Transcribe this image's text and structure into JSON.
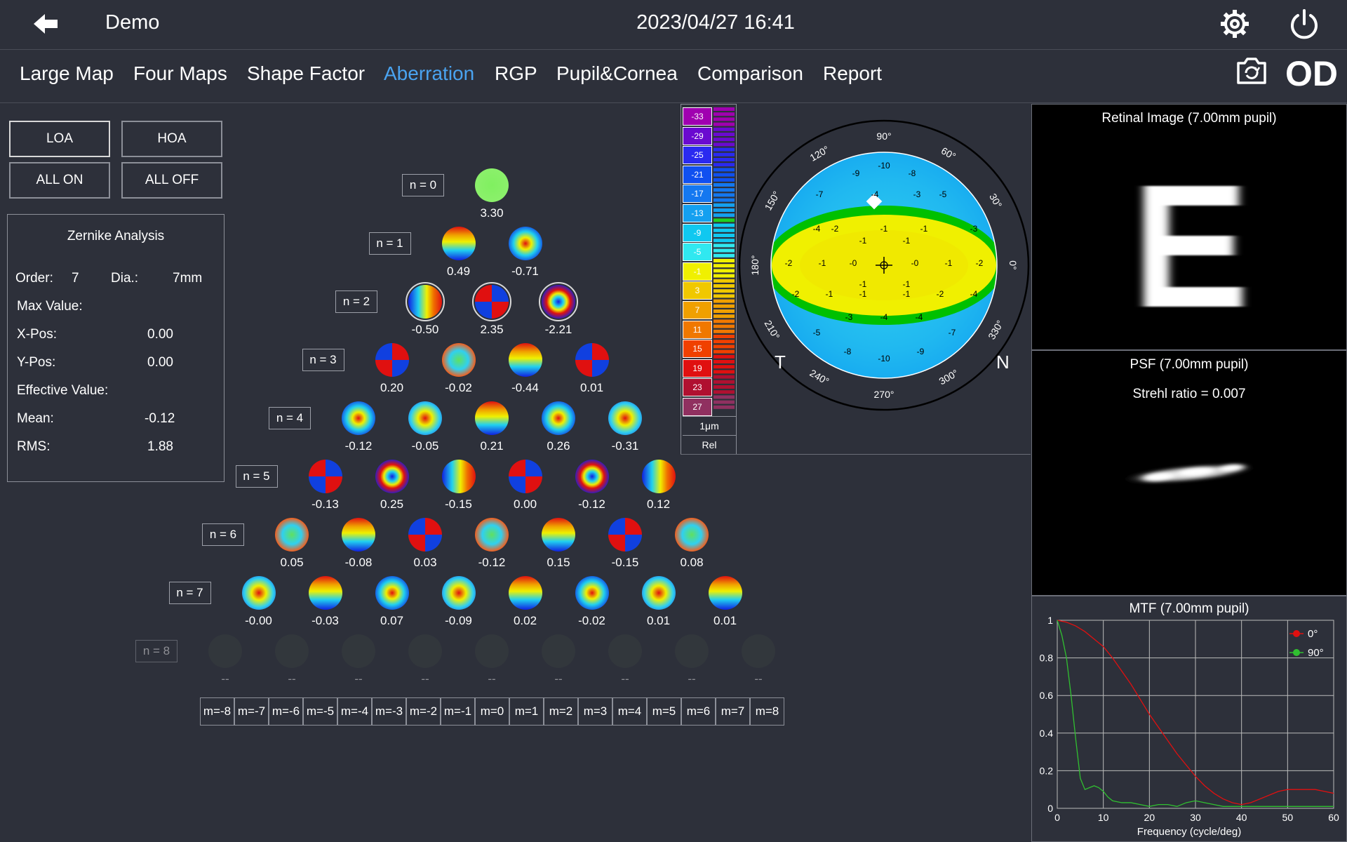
{
  "header": {
    "title": "Demo",
    "datetime": "2023/04/27 16:41",
    "eye": "OD",
    "icons": [
      "back-arrow-icon",
      "gear-icon",
      "power-icon",
      "camera-icon"
    ]
  },
  "tabs": [
    {
      "label": "Large Map",
      "active": false
    },
    {
      "label": "Four Maps",
      "active": false
    },
    {
      "label": "Shape Factor",
      "active": false
    },
    {
      "label": "Aberration",
      "active": true
    },
    {
      "label": "RGP",
      "active": false
    },
    {
      "label": "Pupil&Cornea",
      "active": false
    },
    {
      "label": "Comparison",
      "active": false
    },
    {
      "label": "Report",
      "active": false
    }
  ],
  "controls": {
    "loa": "LOA",
    "hoa": "HOA",
    "all_on": "ALL ON",
    "all_off": "ALL OFF"
  },
  "analysis": {
    "title": "Zernike Analysis",
    "order_label": "Order:",
    "order_value": "7",
    "dia_label": "Dia.:",
    "dia_value": "7mm",
    "max_label": "Max Value:",
    "xpos_label": "X-Pos:",
    "xpos_value": "0.00",
    "ypos_label": "Y-Pos:",
    "ypos_value": "0.00",
    "effective_label": "Effective Value:",
    "mean_label": "Mean:",
    "mean_value": "-0.12",
    "rms_label": "RMS:",
    "rms_value": "1.88"
  },
  "zernike": {
    "orders": [
      {
        "label": "n = 0",
        "values": [
          "3.30"
        ]
      },
      {
        "label": "n = 1",
        "values": [
          "0.49",
          "-0.71"
        ]
      },
      {
        "label": "n = 2",
        "values": [
          "-0.50",
          "2.35",
          "-2.21"
        ]
      },
      {
        "label": "n = 3",
        "values": [
          "0.20",
          "-0.02",
          "-0.44",
          "0.01"
        ]
      },
      {
        "label": "n = 4",
        "values": [
          "-0.12",
          "-0.05",
          "0.21",
          "0.26",
          "-0.31"
        ]
      },
      {
        "label": "n = 5",
        "values": [
          "-0.13",
          "0.25",
          "-0.15",
          "0.00",
          "-0.12",
          "0.12"
        ]
      },
      {
        "label": "n = 6",
        "values": [
          "0.05",
          "-0.08",
          "0.03",
          "-0.12",
          "0.15",
          "-0.15",
          "0.08"
        ]
      },
      {
        "label": "n = 7",
        "values": [
          "-0.00",
          "-0.03",
          "0.07",
          "-0.09",
          "0.02",
          "-0.02",
          "0.01",
          "0.01"
        ]
      },
      {
        "label": "n = 8",
        "values": [
          "--",
          "--",
          "--",
          "--",
          "--",
          "--",
          "--",
          "--",
          "--"
        ],
        "disabled": true
      }
    ],
    "m_labels": [
      "m=-8",
      "m=-7",
      "m=-6",
      "m=-5",
      "m=-4",
      "m=-3",
      "m=-2",
      "m=-1",
      "m=0",
      "m=1",
      "m=2",
      "m=3",
      "m=4",
      "m=5",
      "m=6",
      "m=7",
      "m=8"
    ]
  },
  "scale": {
    "values": [
      "-33",
      "-29",
      "-25",
      "-21",
      "-17",
      "-13",
      "-9",
      "-5",
      "-1",
      "3",
      "7",
      "11",
      "15",
      "19",
      "23",
      "27"
    ],
    "colors": [
      "#a000b0",
      "#6a0ad0",
      "#2a2af0",
      "#1050f0",
      "#1478f0",
      "#14a0f0",
      "#10c8f0",
      "#30e8f0",
      "#f0f000",
      "#f0c800",
      "#f0a000",
      "#f07800",
      "#f04000",
      "#e01010",
      "#b01030",
      "#903060"
    ],
    "unit": "1μm",
    "mode": "Rel"
  },
  "map": {
    "angles": [
      "90°",
      "60°",
      "30°",
      "0°",
      "330°",
      "300°",
      "270°",
      "240°",
      "210°",
      "180°",
      "150°",
      "120°"
    ],
    "temporal": "T",
    "nasal": "N",
    "grid_values": [
      [
        "-10"
      ],
      [
        "-9",
        "-8"
      ],
      [
        "-7",
        "-4",
        "-3",
        "-5"
      ],
      [
        "-4",
        "-2",
        "-1",
        "-1",
        "-3"
      ],
      [
        "-1",
        "-1"
      ],
      [
        "-2",
        "-1",
        "-0",
        "-0",
        "-1",
        "-2"
      ],
      [
        "-2",
        "-1",
        "-1",
        "-1",
        "-2",
        "-4"
      ],
      [
        "-1",
        "-1"
      ],
      [
        "-3",
        "-4",
        "-4"
      ],
      [
        "-5",
        "-7"
      ],
      [
        "-8",
        "-9"
      ],
      [
        "-10"
      ]
    ]
  },
  "retinal": {
    "title": "Retinal Image (7.00mm pupil)",
    "letter": "E"
  },
  "psf": {
    "title": "PSF (7.00mm pupil)",
    "strehl": "Strehl ratio = 0.007"
  },
  "mtf": {
    "title": "MTF (7.00mm pupil)",
    "xlabel": "Frequency (cycle/deg)",
    "x_ticks": [
      "0",
      "10",
      "20",
      "30",
      "40",
      "50",
      "60"
    ],
    "y_ticks": [
      "0",
      "0.2",
      "0.4",
      "0.6",
      "0.8",
      "1"
    ],
    "legend": [
      "0°",
      "90°"
    ]
  },
  "chart_data": {
    "type": "line",
    "title": "MTF (7.00mm pupil)",
    "xlabel": "Frequency (cycle/deg)",
    "ylabel": "",
    "xlim": [
      0,
      60
    ],
    "ylim": [
      0,
      1
    ],
    "grid": true,
    "legend": "top-right",
    "series": [
      {
        "name": "0°",
        "color": "#e01010",
        "x": [
          0,
          2,
          4,
          6,
          8,
          10,
          12,
          14,
          16,
          18,
          20,
          22,
          24,
          26,
          28,
          30,
          32,
          34,
          36,
          38,
          40,
          42,
          44,
          46,
          48,
          50,
          52,
          54,
          56,
          58,
          60
        ],
        "y": [
          1.0,
          0.99,
          0.97,
          0.94,
          0.9,
          0.86,
          0.8,
          0.73,
          0.66,
          0.58,
          0.5,
          0.43,
          0.36,
          0.29,
          0.23,
          0.17,
          0.12,
          0.08,
          0.05,
          0.03,
          0.02,
          0.03,
          0.05,
          0.07,
          0.09,
          0.1,
          0.1,
          0.1,
          0.1,
          0.09,
          0.08
        ]
      },
      {
        "name": "90°",
        "color": "#30c030",
        "x": [
          0,
          1,
          2,
          3,
          4,
          5,
          6,
          7,
          8,
          9,
          10,
          11,
          12,
          14,
          16,
          18,
          20,
          22,
          24,
          26,
          28,
          30,
          32,
          34,
          36,
          38,
          40,
          44,
          48,
          52,
          56,
          60
        ],
        "y": [
          1.0,
          0.92,
          0.8,
          0.6,
          0.37,
          0.16,
          0.1,
          0.11,
          0.12,
          0.11,
          0.09,
          0.06,
          0.04,
          0.03,
          0.03,
          0.02,
          0.01,
          0.02,
          0.02,
          0.01,
          0.03,
          0.04,
          0.03,
          0.02,
          0.01,
          0.01,
          0.01,
          0.01,
          0.01,
          0.01,
          0.01,
          0.01
        ]
      }
    ]
  }
}
